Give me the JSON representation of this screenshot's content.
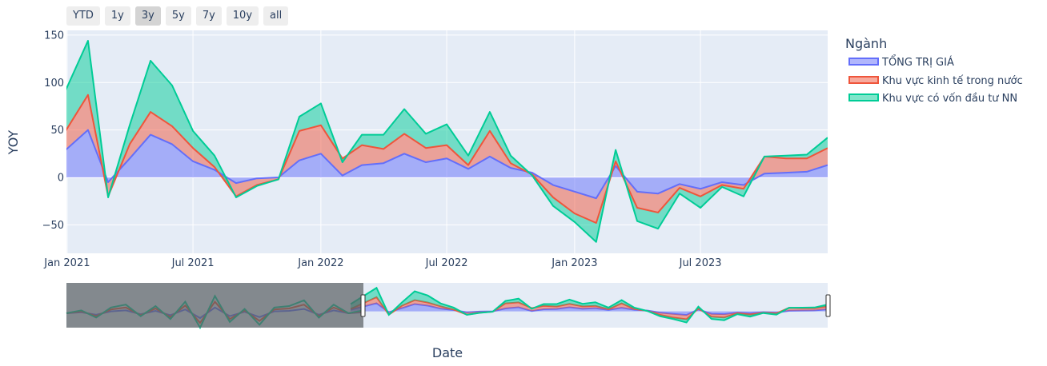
{
  "range_selector": {
    "buttons": [
      "YTD",
      "1y",
      "3y",
      "5y",
      "7y",
      "10y",
      "all"
    ],
    "active": "3y"
  },
  "chart_data": {
    "type": "area",
    "stacked": true,
    "xlabel": "Date",
    "ylabel": "YOY",
    "legend_title": "Ngành",
    "legend_position": "top-right",
    "x_tick_labels": [
      "Jan 2021",
      "Jul 2021",
      "Jan 2022",
      "Jul 2022",
      "Jan 2023",
      "Jul 2023"
    ],
    "y_tick_labels": [
      "150",
      "100",
      "50",
      "0",
      "−50"
    ],
    "ylim": [
      -80,
      155
    ],
    "x_range": [
      "2020-12-31",
      "2023-12-31"
    ],
    "grid": true,
    "x": [
      "2020-12-01",
      "2021-01-31",
      "2021-03-01",
      "2021-04-01",
      "2021-05-01",
      "2021-06-01",
      "2021-07-01",
      "2021-08-01",
      "2021-09-01",
      "2021-10-01",
      "2021-11-01",
      "2021-12-01",
      "2022-01-01",
      "2022-02-01",
      "2022-03-01",
      "2022-04-01",
      "2022-05-01",
      "2022-06-01",
      "2022-07-01",
      "2022-08-01",
      "2022-09-01",
      "2022-10-01",
      "2022-11-01",
      "2022-12-01",
      "2023-01-01",
      "2023-02-01",
      "2023-03-01",
      "2023-04-01",
      "2023-05-01",
      "2023-06-01",
      "2023-07-01",
      "2023-08-01",
      "2023-09-01",
      "2023-10-01",
      "2023-11-01",
      "2023-12-01",
      "2023-12-31"
    ],
    "series": [
      {
        "name": "TỔNG TRỊ GIÁ",
        "color": "#636efa",
        "values": [
          10,
          50,
          -5,
          20,
          45,
          35,
          17,
          8,
          -6,
          -1,
          0,
          18,
          25,
          2,
          13,
          15,
          25,
          16,
          20,
          9,
          22,
          10,
          5,
          -8,
          -15,
          -22,
          12,
          -15,
          -17,
          -7,
          -12,
          -5,
          -8,
          4,
          5,
          6,
          13
        ]
      },
      {
        "name": "Khu vực kinh tế trong nước",
        "color": "#ef553b",
        "values": [
          5,
          37,
          -15,
          15,
          24,
          19,
          14,
          3,
          -14,
          -7,
          -2,
          31,
          30,
          18,
          21,
          15,
          21,
          15,
          14,
          4,
          27,
          5,
          -2,
          -13,
          -23,
          -26,
          5,
          -17,
          -20,
          -4,
          -8,
          -3,
          -4,
          18,
          15,
          14,
          18
        ]
      },
      {
        "name": "Khu vực có vốn đầu tư NN",
        "color": "#00cc96",
        "values": [
          30,
          57,
          -1,
          20,
          54,
          43,
          18,
          12,
          -1,
          -1,
          0,
          15,
          23,
          -4,
          11,
          15,
          26,
          15,
          22,
          10,
          20,
          8,
          -1,
          -9,
          -9,
          -20,
          12,
          -14,
          -17,
          -6,
          -12,
          -2,
          -8,
          0,
          3,
          4,
          11
        ]
      }
    ]
  }
}
